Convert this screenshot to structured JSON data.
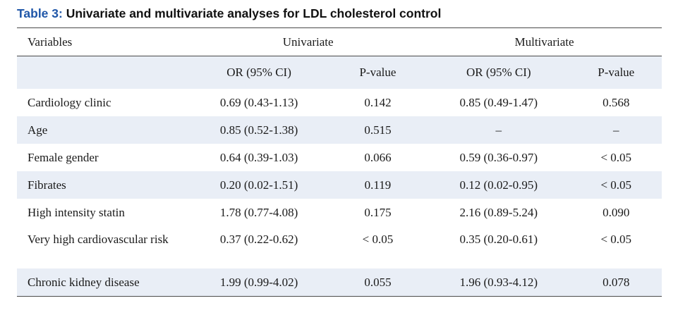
{
  "caption": {
    "label": "Table 3:",
    "title": " Univariate and multivariate analyses for LDL cholesterol control"
  },
  "header": {
    "variables": "Variables",
    "univariate": "Univariate",
    "multivariate": "Multivariate"
  },
  "subheader": {
    "or_uni": "OR (95% CI)",
    "p_uni": "P-value",
    "or_multi": "OR (95% CI)",
    "p_multi": "P-value"
  },
  "rows": [
    {
      "variable": "Cardiology clinic",
      "or_uni": "0.69 (0.43-1.13)",
      "p_uni": "0.142",
      "or_multi": "0.85 (0.49-1.47)",
      "p_multi": "0.568"
    },
    {
      "variable": "Age",
      "or_uni": "0.85 (0.52-1.38)",
      "p_uni": "0.515",
      "or_multi": "–",
      "p_multi": "–"
    },
    {
      "variable": "Female gender",
      "or_uni": "0.64 (0.39-1.03)",
      "p_uni": "0.066",
      "or_multi": "0.59 (0.36-0.97)",
      "p_multi": "< 0.05"
    },
    {
      "variable": "Fibrates",
      "or_uni": "0.20 (0.02-1.51)",
      "p_uni": "0.119",
      "or_multi": "0.12 (0.02-0.95)",
      "p_multi": "< 0.05"
    },
    {
      "variable": "High intensity statin",
      "or_uni": "1.78 (0.77-4.08)",
      "p_uni": "0.175",
      "or_multi": "2.16 (0.89-5.24)",
      "p_multi": "0.090"
    },
    {
      "variable": "Very high cardiovascular risk",
      "or_uni": "0.37 (0.22-0.62)",
      "p_uni": "< 0.05",
      "or_multi": "0.35 (0.20-0.61)",
      "p_multi": "< 0.05"
    },
    {
      "variable": "Chronic kidney disease",
      "or_uni": "1.99 (0.99-4.02)",
      "p_uni": "0.055",
      "or_multi": "1.96 (0.93-4.12)",
      "p_multi": "0.078"
    }
  ],
  "colors": {
    "label_blue": "#1f56a8",
    "row_shade": "#e9eef6"
  }
}
